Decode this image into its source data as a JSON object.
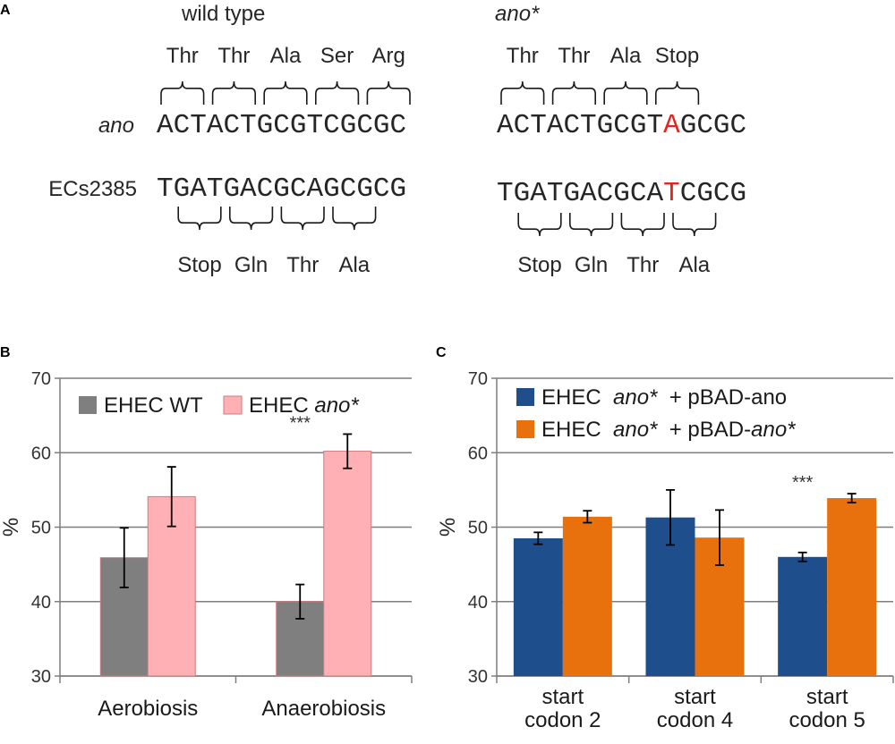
{
  "panels": {
    "A": "A",
    "B": "B",
    "C": "C"
  },
  "panel_a": {
    "wild_type": {
      "heading": "wild type",
      "row1_label": "ano",
      "row1_codons": [
        "Thr",
        "Thr",
        "Ala",
        "Ser",
        "Arg"
      ],
      "row1_seq": "ACTACTGCGTCGCGC",
      "row2_label": "ECs2385",
      "row2_seq": "TGATGACGCAGCGCG",
      "row2_codons": [
        "Stop",
        "Gln",
        "Thr",
        "Ala"
      ]
    },
    "mutant": {
      "heading": "ano*",
      "row1_codons": [
        "Thr",
        "Thr",
        "Ala",
        "Stop"
      ],
      "row1_seq": "ACTACTGCGTAGCGC",
      "row1_mut_index": 10,
      "row2_seq": "TGATGACGCATCGCG",
      "row2_mut_index": 10,
      "row2_codons": [
        "Stop",
        "Gln",
        "Thr",
        "Ala"
      ]
    },
    "colors": {
      "stop": "#e8221f",
      "ala": "#19b24b",
      "text": "#262626"
    }
  },
  "chart_data": [
    {
      "panel": "B",
      "type": "bar",
      "ylabel": "%",
      "ylim": [
        30,
        70
      ],
      "yticks": [
        30,
        40,
        50,
        60,
        70
      ],
      "grid": true,
      "categories": [
        "Aerobiosis",
        "Anaerobiosis"
      ],
      "series": [
        {
          "name_parts": [
            "EHEC WT"
          ],
          "color": "#7f7f7f",
          "values": [
            45.9,
            40.0
          ],
          "errors": [
            4.0,
            2.3
          ]
        },
        {
          "name_parts": [
            "EHEC ",
            "ano*"
          ],
          "color": "#ffb0b5",
          "values": [
            54.1,
            60.2
          ],
          "errors": [
            4.0,
            2.3
          ]
        }
      ],
      "annotations": [
        {
          "text": "***",
          "category": 1
        }
      ],
      "legend": "top-left"
    },
    {
      "panel": "C",
      "type": "bar",
      "ylabel": "%",
      "ylim": [
        30,
        70
      ],
      "yticks": [
        30,
        40,
        50,
        60,
        70
      ],
      "grid": true,
      "categories": [
        [
          "start",
          "codon 2"
        ],
        [
          "start",
          "codon 4"
        ],
        [
          "start",
          "codon 5"
        ]
      ],
      "series": [
        {
          "name_parts": [
            "EHEC  ",
            "ano*",
            "  + pBAD-ano"
          ],
          "color": "#1f4e8c",
          "values": [
            48.5,
            51.3,
            46.0
          ],
          "errors": [
            0.8,
            3.7,
            0.6
          ]
        },
        {
          "name_parts": [
            "EHEC  ",
            "ano*",
            "  + pBAD-",
            "ano*"
          ],
          "color": "#e8700d",
          "values": [
            51.4,
            48.6,
            53.9
          ],
          "errors": [
            0.8,
            3.7,
            0.6
          ]
        }
      ],
      "annotations": [
        {
          "text": "***",
          "category": 2
        }
      ],
      "legend": "top-left"
    }
  ]
}
